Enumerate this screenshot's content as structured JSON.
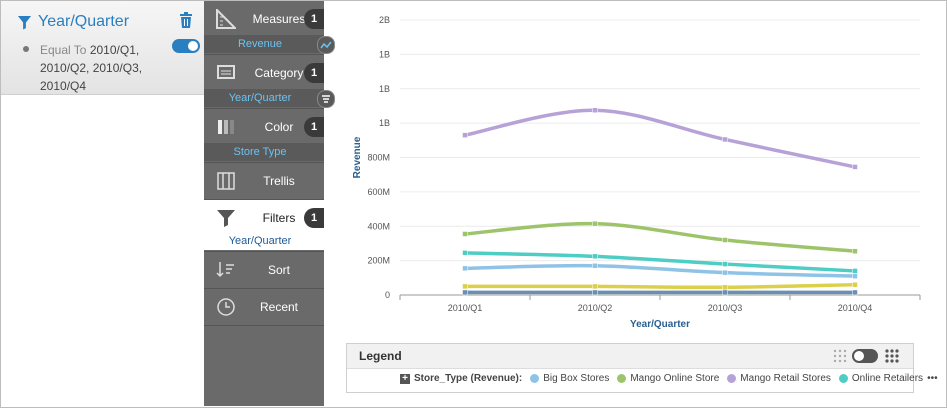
{
  "filter": {
    "title": "Year/Quarter",
    "condition_label": "Equal To",
    "condition_values": "2010/Q1, 2010/Q2, 2010/Q3, 2010/Q4"
  },
  "shelf": {
    "measures": {
      "label": "Measures",
      "count": "1",
      "sub": "Revenue"
    },
    "category": {
      "label": "Category",
      "count": "1",
      "sub": "Year/Quarter"
    },
    "color": {
      "label": "Color",
      "count": "1",
      "sub": "Store Type"
    },
    "trellis": {
      "label": "Trellis"
    },
    "filters": {
      "label": "Filters",
      "count": "1",
      "sub": "Year/Quarter"
    },
    "sort": {
      "label": "Sort"
    },
    "recent": {
      "label": "Recent"
    }
  },
  "legend": {
    "title": "Legend",
    "group_label": "Store_Type (Revenue):",
    "more": "•••"
  },
  "chart_data": {
    "type": "line",
    "categories": [
      "2010/Q1",
      "2010/Q2",
      "2010/Q3",
      "2010/Q4"
    ],
    "xlabel": "Year/Quarter",
    "ylabel": "Revenue",
    "yticks": [
      "0",
      "200M",
      "400M",
      "600M",
      "800M",
      "1B",
      "1B",
      "1B",
      "2B"
    ],
    "ylim": [
      0,
      1600
    ],
    "series": [
      {
        "name": "Big Box Stores",
        "color": "#8fc3e6",
        "values": [
          155,
          170,
          130,
          110
        ]
      },
      {
        "name": "Mango Online Store",
        "color": "#9dc46a",
        "values": [
          355,
          415,
          320,
          255
        ]
      },
      {
        "name": "Mango Retail Stores",
        "color": "#b7a2d8",
        "values": [
          930,
          1075,
          905,
          745
        ]
      },
      {
        "name": "Online Retailers",
        "color": "#4ecdc4",
        "values": [
          245,
          225,
          180,
          140
        ]
      },
      {
        "name": "",
        "color": "#dccf4a",
        "values": [
          50,
          50,
          45,
          60
        ]
      },
      {
        "name": "",
        "color": "#6a8fb5",
        "values": [
          15,
          15,
          15,
          15
        ]
      }
    ]
  }
}
